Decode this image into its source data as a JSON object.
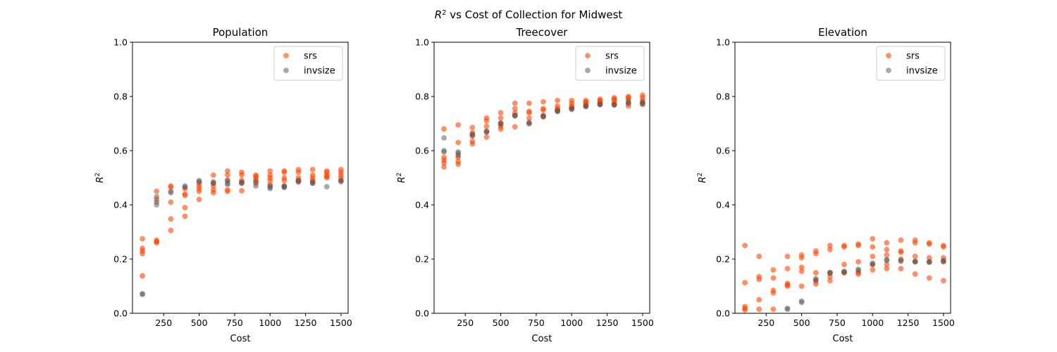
{
  "suptitle_prefix": "R",
  "suptitle_sup": "2",
  "suptitle_rest": " vs Cost of Collection for Midwest",
  "colors": {
    "srs": "#ff4500",
    "invsize": "#555555",
    "axis": "#000000"
  },
  "chart_data": [
    {
      "type": "scatter",
      "title": "Population",
      "xlabel": "Cost",
      "ylabel_base": "R",
      "ylabel_sup": "2",
      "xlim": [
        30,
        1550
      ],
      "ylim": [
        0,
        1.0
      ],
      "xticks": [
        250,
        500,
        750,
        1000,
        1250,
        1500
      ],
      "yticks": [
        0.0,
        0.2,
        0.4,
        0.6,
        0.8,
        1.0
      ],
      "legend": [
        "srs",
        "invsize"
      ],
      "legend_position": "upper right",
      "series": [
        {
          "name": "srs",
          "x": [
            100,
            100,
            100,
            100,
            100,
            200,
            200,
            200,
            200,
            200,
            300,
            300,
            300,
            300,
            300,
            400,
            400,
            400,
            400,
            400,
            500,
            500,
            500,
            500,
            500,
            600,
            600,
            600,
            600,
            600,
            700,
            700,
            700,
            700,
            700,
            800,
            800,
            800,
            800,
            800,
            900,
            900,
            900,
            900,
            900,
            1000,
            1000,
            1000,
            1000,
            1000,
            1100,
            1100,
            1100,
            1100,
            1100,
            1200,
            1200,
            1200,
            1200,
            1200,
            1300,
            1300,
            1300,
            1300,
            1300,
            1400,
            1400,
            1400,
            1400,
            1400,
            1500,
            1500,
            1500,
            1500,
            1500
          ],
          "y": [
            0.275,
            0.24,
            0.23,
            0.22,
            0.138,
            0.45,
            0.42,
            0.27,
            0.265,
            0.26,
            0.47,
            0.465,
            0.41,
            0.348,
            0.306,
            0.46,
            0.44,
            0.435,
            0.39,
            0.358,
            0.48,
            0.47,
            0.46,
            0.45,
            0.42,
            0.51,
            0.48,
            0.47,
            0.455,
            0.445,
            0.525,
            0.51,
            0.49,
            0.455,
            0.45,
            0.52,
            0.51,
            0.49,
            0.48,
            0.452,
            0.51,
            0.505,
            0.5,
            0.49,
            0.48,
            0.525,
            0.51,
            0.5,
            0.49,
            0.475,
            0.525,
            0.52,
            0.5,
            0.49,
            0.47,
            0.53,
            0.52,
            0.5,
            0.49,
            0.485,
            0.53,
            0.51,
            0.5,
            0.49,
            0.48,
            0.525,
            0.52,
            0.51,
            0.505,
            0.5,
            0.53,
            0.52,
            0.51,
            0.5,
            0.49
          ]
        },
        {
          "name": "invsize",
          "x": [
            100,
            100,
            200,
            200,
            200,
            300,
            300,
            400,
            400,
            500,
            500,
            600,
            600,
            700,
            700,
            700,
            800,
            800,
            900,
            900,
            1000,
            1000,
            1000,
            1100,
            1100,
            1100,
            1200,
            1200,
            1300,
            1300,
            1400,
            1500,
            1500
          ],
          "y": [
            0.072,
            0.07,
            0.43,
            0.41,
            0.4,
            0.45,
            0.445,
            0.47,
            0.465,
            0.49,
            0.485,
            0.485,
            0.48,
            0.49,
            0.48,
            0.475,
            0.485,
            0.48,
            0.485,
            0.47,
            0.47,
            0.465,
            0.46,
            0.47,
            0.465,
            0.465,
            0.49,
            0.485,
            0.485,
            0.48,
            0.467,
            0.49,
            0.485
          ]
        }
      ]
    },
    {
      "type": "scatter",
      "title": "Treecover",
      "xlabel": "Cost",
      "ylabel_base": "R",
      "ylabel_sup": "2",
      "xlim": [
        30,
        1550
      ],
      "ylim": [
        0,
        1.0
      ],
      "xticks": [
        250,
        500,
        750,
        1000,
        1250,
        1500
      ],
      "yticks": [
        0.0,
        0.2,
        0.4,
        0.6,
        0.8,
        1.0
      ],
      "legend": [
        "srs",
        "invsize"
      ],
      "legend_position": "upper right",
      "series": [
        {
          "name": "srs",
          "x": [
            100,
            100,
            100,
            100,
            100,
            200,
            200,
            200,
            200,
            200,
            300,
            300,
            300,
            300,
            300,
            400,
            400,
            400,
            400,
            400,
            500,
            500,
            500,
            500,
            500,
            600,
            600,
            600,
            600,
            600,
            700,
            700,
            700,
            700,
            700,
            800,
            800,
            800,
            800,
            800,
            900,
            900,
            900,
            900,
            900,
            1000,
            1000,
            1000,
            1000,
            1000,
            1100,
            1100,
            1100,
            1100,
            1100,
            1200,
            1200,
            1200,
            1200,
            1200,
            1300,
            1300,
            1300,
            1300,
            1300,
            1400,
            1400,
            1400,
            1400,
            1400,
            1500,
            1500,
            1500,
            1500,
            1500
          ],
          "y": [
            0.68,
            0.575,
            0.565,
            0.555,
            0.54,
            0.695,
            0.63,
            0.575,
            0.56,
            0.55,
            0.685,
            0.665,
            0.655,
            0.635,
            0.625,
            0.72,
            0.71,
            0.69,
            0.67,
            0.65,
            0.74,
            0.72,
            0.7,
            0.69,
            0.68,
            0.775,
            0.755,
            0.74,
            0.73,
            0.688,
            0.775,
            0.745,
            0.74,
            0.72,
            0.7,
            0.78,
            0.755,
            0.75,
            0.73,
            0.725,
            0.785,
            0.765,
            0.755,
            0.75,
            0.745,
            0.785,
            0.775,
            0.765,
            0.76,
            0.755,
            0.785,
            0.78,
            0.775,
            0.77,
            0.765,
            0.79,
            0.785,
            0.78,
            0.775,
            0.77,
            0.795,
            0.79,
            0.785,
            0.775,
            0.77,
            0.8,
            0.795,
            0.79,
            0.775,
            0.765,
            0.805,
            0.795,
            0.785,
            0.775,
            0.77
          ]
        },
        {
          "name": "invsize",
          "x": [
            100,
            100,
            100,
            200,
            200,
            200,
            300,
            300,
            400,
            400,
            500,
            500,
            600,
            600,
            700,
            700,
            800,
            800,
            900,
            900,
            1000,
            1000,
            1100,
            1100,
            1200,
            1200,
            1300,
            1300,
            1400,
            1400,
            1500,
            1500
          ],
          "y": [
            0.647,
            0.6,
            0.595,
            0.595,
            0.59,
            0.582,
            0.662,
            0.655,
            0.672,
            0.668,
            0.702,
            0.698,
            0.73,
            0.728,
            0.705,
            0.7,
            0.728,
            0.725,
            0.748,
            0.745,
            0.755,
            0.752,
            0.765,
            0.762,
            0.772,
            0.77,
            0.77,
            0.768,
            0.78,
            0.775,
            0.778,
            0.774
          ]
        }
      ]
    },
    {
      "type": "scatter",
      "title": "Elevation",
      "xlabel": "Cost",
      "ylabel_base": "R",
      "ylabel_sup": "2",
      "xlim": [
        30,
        1550
      ],
      "ylim": [
        0,
        1.0
      ],
      "xticks": [
        250,
        500,
        750,
        1000,
        1250,
        1500
      ],
      "yticks": [
        0.0,
        0.2,
        0.4,
        0.6,
        0.8,
        1.0
      ],
      "legend": [
        "srs",
        "invsize"
      ],
      "legend_position": "upper right",
      "series": [
        {
          "name": "srs",
          "x": [
            100,
            100,
            100,
            100,
            100,
            200,
            200,
            200,
            200,
            200,
            300,
            300,
            300,
            300,
            300,
            400,
            400,
            400,
            400,
            400,
            500,
            500,
            500,
            500,
            500,
            600,
            600,
            600,
            600,
            600,
            700,
            700,
            700,
            700,
            700,
            800,
            800,
            800,
            800,
            800,
            900,
            900,
            900,
            900,
            900,
            1000,
            1000,
            1000,
            1000,
            1000,
            1100,
            1100,
            1100,
            1100,
            1100,
            1200,
            1200,
            1200,
            1200,
            1200,
            1300,
            1300,
            1300,
            1300,
            1300,
            1400,
            1400,
            1400,
            1400,
            1400,
            1500,
            1500,
            1500,
            1500,
            1500
          ],
          "y": [
            0.25,
            0.113,
            0.025,
            0.018,
            0.012,
            0.21,
            0.135,
            0.125,
            0.05,
            0.015,
            0.16,
            0.13,
            0.085,
            0.075,
            0.015,
            0.21,
            0.165,
            0.11,
            0.105,
            0.1,
            0.215,
            0.205,
            0.17,
            0.155,
            0.1,
            0.23,
            0.22,
            0.15,
            0.12,
            0.108,
            0.25,
            0.235,
            0.15,
            0.135,
            0.12,
            0.25,
            0.245,
            0.18,
            0.15,
            0.15,
            0.255,
            0.25,
            0.19,
            0.15,
            0.145,
            0.275,
            0.245,
            0.21,
            0.18,
            0.16,
            0.26,
            0.235,
            0.215,
            0.18,
            0.165,
            0.27,
            0.23,
            0.225,
            0.2,
            0.165,
            0.27,
            0.26,
            0.21,
            0.19,
            0.145,
            0.26,
            0.255,
            0.205,
            0.19,
            0.13,
            0.25,
            0.245,
            0.205,
            0.19,
            0.12
          ]
        },
        {
          "name": "invsize",
          "x": [
            400,
            400,
            500,
            500,
            600,
            600,
            700,
            700,
            800,
            800,
            900,
            900,
            1000,
            1000,
            1100,
            1100,
            1200,
            1200,
            1300,
            1300,
            1400,
            1400,
            1500,
            1500
          ],
          "y": [
            0.018,
            0.015,
            0.045,
            0.04,
            0.128,
            0.122,
            0.15,
            0.148,
            0.155,
            0.152,
            0.162,
            0.158,
            0.185,
            0.18,
            0.198,
            0.195,
            0.195,
            0.192,
            0.192,
            0.19,
            0.19,
            0.188,
            0.195,
            0.192
          ]
        }
      ]
    }
  ]
}
